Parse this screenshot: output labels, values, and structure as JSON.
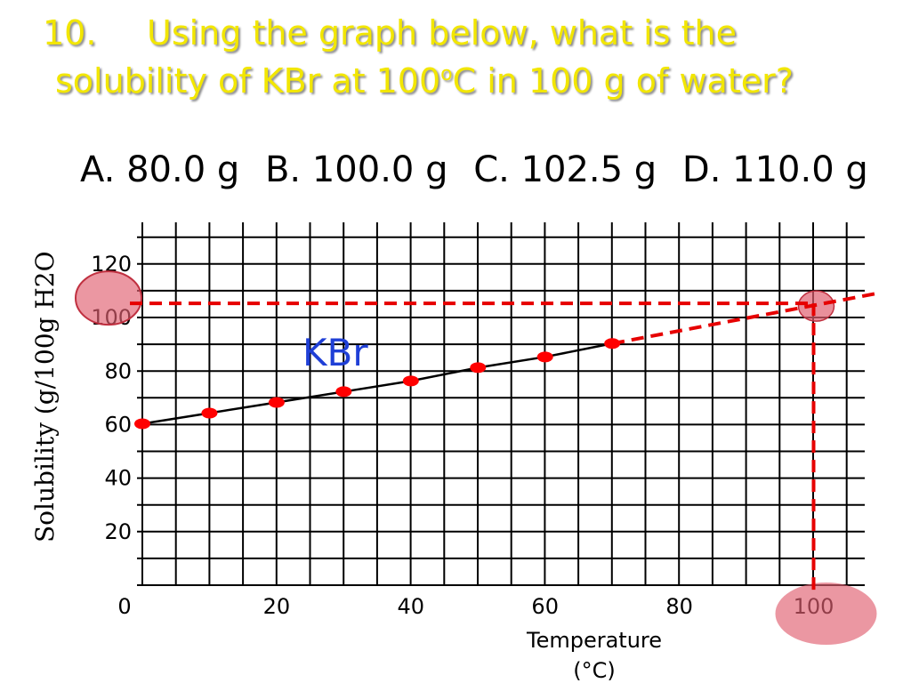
{
  "slide": {
    "number": "10.",
    "question_line1": "Using the graph below, what is the",
    "question_line2_pre": "solubility of KBr at 100",
    "question_line2_sup": "o",
    "question_line2_post": "C in 100 g of water?",
    "choices": [
      "A. 80.0 g",
      "B. 100.0 g",
      "C. 102.5 g",
      "D. 110.0 g"
    ]
  },
  "chart_data": {
    "type": "line",
    "title": "",
    "xlabel": "Temperature",
    "xlabel_units": "(°C)",
    "ylabel": "Solubility (g/100g H2O",
    "xlim": [
      0,
      110
    ],
    "ylim": [
      0,
      130
    ],
    "grid": true,
    "x_ticks": [
      0,
      20,
      40,
      60,
      80,
      100
    ],
    "y_ticks": [
      20,
      40,
      60,
      80,
      100,
      120
    ],
    "series": [
      {
        "name": "KBr",
        "x": [
          0,
          10,
          20,
          30,
          40,
          50,
          60,
          70
        ],
        "y": [
          60,
          64,
          68,
          72,
          76,
          81,
          85,
          90
        ]
      }
    ],
    "extrapolation": {
      "x": [
        70,
        110
      ],
      "y": [
        90,
        109
      ]
    },
    "reading": {
      "x": 100,
      "y": 105
    },
    "colors": {
      "points": "#ff0000",
      "dashed": "#e60000",
      "highlight": "#e06070",
      "series_label": "#1f3fd6"
    }
  }
}
